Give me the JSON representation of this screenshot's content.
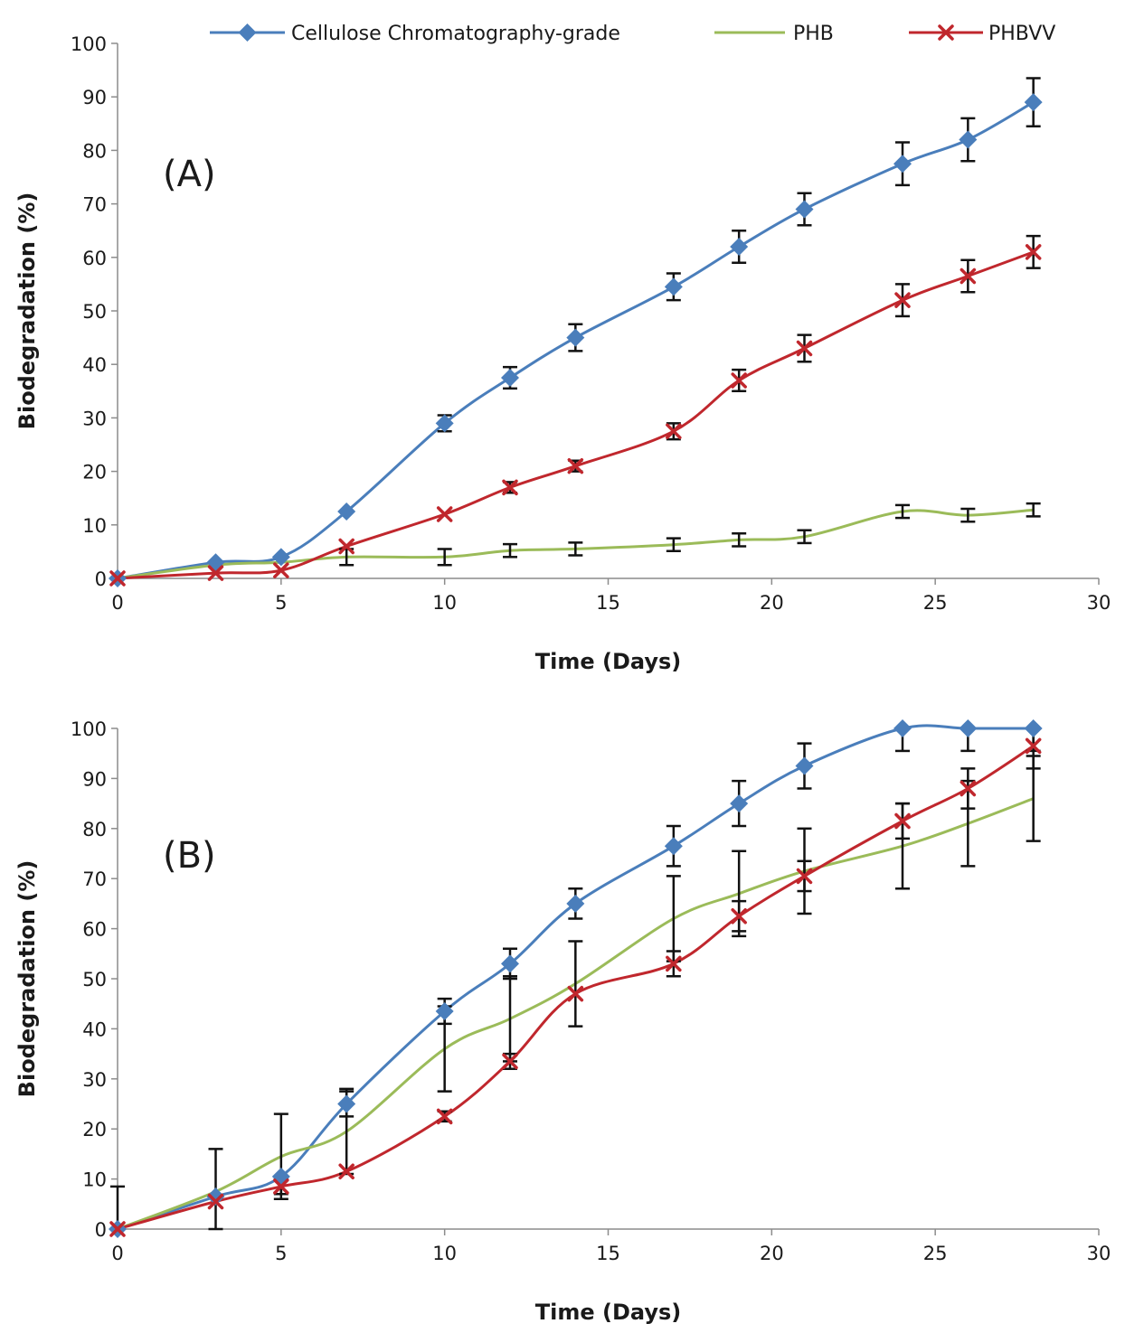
{
  "legend": [
    {
      "name": "Cellulose Chromatography-grade",
      "color": "#4a7ebb",
      "marker": "diamond"
    },
    {
      "name": "PHB",
      "color": "#9bbb59",
      "marker": "none"
    },
    {
      "name": "PHBVV",
      "color": "#c0272d",
      "marker": "x"
    }
  ],
  "error_bar_color": "#111111",
  "chart_data": [
    {
      "type": "line",
      "panel_label": "(A)",
      "title": "",
      "xlabel": "Time (Days)",
      "ylabel": "Biodegradation (%)",
      "xlim": [
        0,
        30
      ],
      "ylim": [
        0,
        100
      ],
      "xticks": [
        0,
        5,
        10,
        15,
        20,
        25,
        30
      ],
      "yticks": [
        0,
        10,
        20,
        30,
        40,
        50,
        60,
        70,
        80,
        90,
        100
      ],
      "x": [
        0,
        3,
        5,
        7,
        10,
        12,
        14,
        17,
        19,
        21,
        24,
        26,
        28
      ],
      "series": [
        {
          "name": "Cellulose Chromatography-grade",
          "values": [
            0,
            3,
            4,
            12.5,
            29,
            37.5,
            45,
            54.5,
            62,
            69,
            77.5,
            82,
            89
          ],
          "errors": [
            0,
            0,
            0,
            0,
            1.5,
            2,
            2.5,
            2.5,
            3,
            3,
            4,
            4,
            4.5
          ]
        },
        {
          "name": "PHB",
          "values": [
            0,
            2.5,
            3,
            4,
            4,
            5.2,
            5.5,
            6.3,
            7.2,
            7.8,
            12.5,
            11.8,
            12.8
          ],
          "errors": [
            0,
            0,
            0,
            1.5,
            1.5,
            1.2,
            1.2,
            1.2,
            1.2,
            1.2,
            1.2,
            1.2,
            1.2
          ]
        },
        {
          "name": "PHBVV",
          "values": [
            0,
            1,
            1.5,
            6,
            12,
            17,
            21,
            27.5,
            37,
            43,
            52,
            56.5,
            61
          ],
          "errors": [
            0,
            0,
            0,
            0,
            0,
            1,
            1,
            1.5,
            2,
            2.5,
            3,
            3,
            3
          ]
        }
      ]
    },
    {
      "type": "line",
      "panel_label": "(B)",
      "title": "",
      "xlabel": "Time (Days)",
      "ylabel": "Biodegradation (%)",
      "xlim": [
        0,
        30
      ],
      "ylim": [
        0,
        100
      ],
      "xticks": [
        0,
        5,
        10,
        15,
        20,
        25,
        30
      ],
      "yticks": [
        0,
        10,
        20,
        30,
        40,
        50,
        60,
        70,
        80,
        90,
        100
      ],
      "x": [
        0,
        3,
        5,
        7,
        10,
        12,
        14,
        17,
        19,
        21,
        24,
        26,
        28
      ],
      "series": [
        {
          "name": "Cellulose Chromatography-grade",
          "values": [
            0,
            6.5,
            10.5,
            25,
            43.5,
            53,
            65,
            76.5,
            85,
            92.5,
            100,
            100,
            100
          ],
          "errors": [
            0,
            0,
            0,
            2.5,
            2.5,
            3,
            3,
            4,
            4.5,
            4.5,
            4.5,
            4.5,
            4.5
          ]
        },
        {
          "name": "PHB",
          "values": [
            0,
            7.5,
            14.5,
            19.5,
            36,
            42,
            49,
            62,
            67,
            71.5,
            76.5,
            81,
            86
          ],
          "errors": [
            8.5,
            8.5,
            8.5,
            8.5,
            8.5,
            8.5,
            8.5,
            8.5,
            8.5,
            8.5,
            8.5,
            8.5,
            8.5
          ]
        },
        {
          "name": "PHBVV",
          "values": [
            0,
            5.5,
            8.5,
            11.5,
            22.5,
            33.5,
            47,
            53,
            62.5,
            70.5,
            81.5,
            88,
            96.5
          ],
          "errors": [
            0,
            0,
            1.5,
            0,
            1,
            1.5,
            0,
            2.5,
            3,
            3,
            3.5,
            4,
            4.5
          ]
        }
      ]
    }
  ]
}
